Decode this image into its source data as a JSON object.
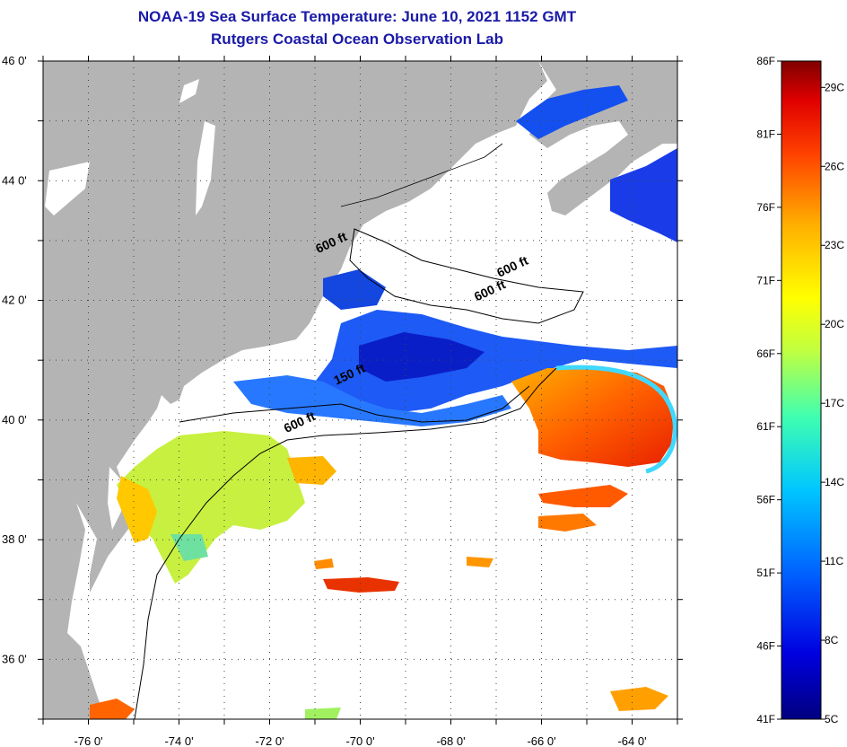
{
  "title": {
    "line1": "NOAA-19 Sea Surface Temperature:  June 10, 2021 1152 GMT",
    "line2": "Rutgers Coastal Ocean Observation Lab"
  },
  "map": {
    "lon_range": [
      -77.0,
      -63.0
    ],
    "lat_range": [
      35.0,
      46.0
    ],
    "lon_ticks": [
      {
        "value": -76,
        "label": "-76 0'"
      },
      {
        "value": -74,
        "label": "-74 0'"
      },
      {
        "value": -72,
        "label": "-72 0'"
      },
      {
        "value": -70,
        "label": "-70 0'"
      },
      {
        "value": -68,
        "label": "-68 0'"
      },
      {
        "value": -66,
        "label": "-66 0'"
      },
      {
        "value": -64,
        "label": "-64 0'"
      }
    ],
    "lat_ticks": [
      {
        "value": 46,
        "label": "46 0'"
      },
      {
        "value": 44,
        "label": "44 0'"
      },
      {
        "value": 42,
        "label": "42 0'"
      },
      {
        "value": 40,
        "label": "40 0'"
      },
      {
        "value": 38,
        "label": "38 0'"
      },
      {
        "value": 36,
        "label": "36 0'"
      }
    ],
    "contour_labels": [
      {
        "text": "600 ft",
        "lon": -70.6,
        "lat": 42.9
      },
      {
        "text": "600 ft",
        "lon": -66.6,
        "lat": 42.5
      },
      {
        "text": "600 ft",
        "lon": -67.1,
        "lat": 42.1
      },
      {
        "text": "150 ft",
        "lon": -70.2,
        "lat": 40.7
      },
      {
        "text": "600 ft",
        "lon": -71.3,
        "lat": 39.9
      }
    ],
    "colors": {
      "land": "#b4b4b4",
      "cloud": "#ffffff",
      "grid": "#555555"
    }
  },
  "colorbar": {
    "fahrenheit_labels": [
      "86F",
      "81F",
      "76F",
      "71F",
      "66F",
      "61F",
      "56F",
      "51F",
      "46F",
      "41F"
    ],
    "celsius_labels": [
      "29C",
      "26C",
      "23C",
      "20C",
      "17C",
      "14C",
      "11C",
      "8C",
      "5C"
    ],
    "range_f": [
      41,
      86
    ],
    "range_c": [
      5,
      30
    ]
  }
}
